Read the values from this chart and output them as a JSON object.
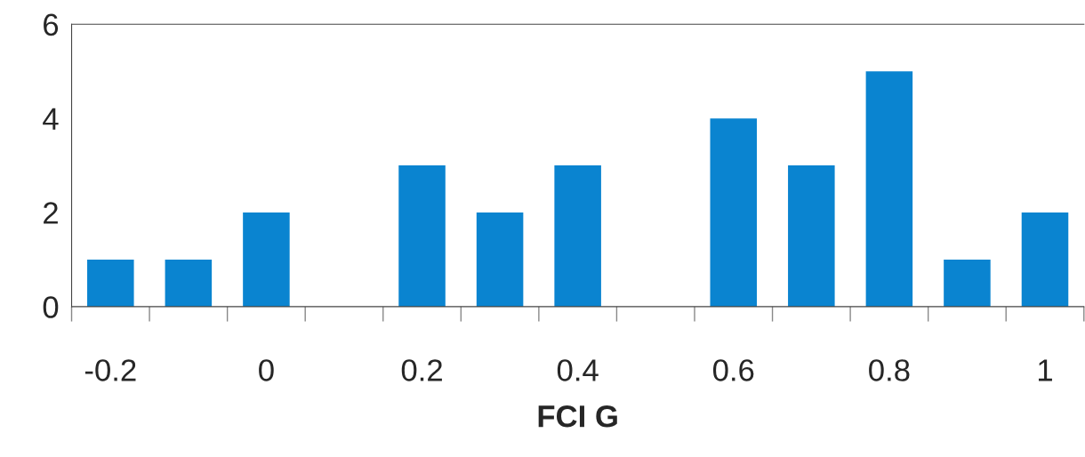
{
  "chart_data": {
    "type": "bar",
    "xlabel": "FCI G",
    "categories": [
      "-0.2",
      null,
      "0",
      null,
      "0.2",
      null,
      "0.4",
      null,
      "0.6",
      null,
      "0.8",
      null,
      "1"
    ],
    "values": [
      1,
      1,
      2,
      0,
      3,
      2,
      3,
      0,
      4,
      3,
      5,
      1,
      2
    ],
    "color": "#0a84d0",
    "ylim": [
      0,
      6
    ],
    "yticks": [
      0,
      2,
      4,
      6
    ],
    "grid": false,
    "legend": false
  }
}
